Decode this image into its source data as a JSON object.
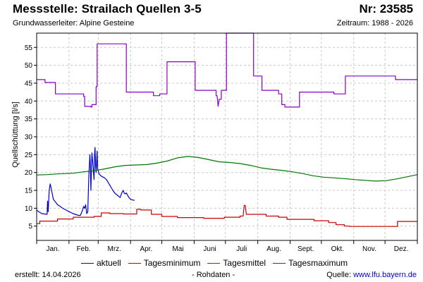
{
  "header": {
    "title": "Messstelle: Strailach Quellen 3-5",
    "station_nr": "Nr: 23585",
    "subtitle": "Grundwasserleiter: Alpine Gesteine",
    "period": "Zeitraum: 1988 - 2026"
  },
  "footer": {
    "created_label": "erstellt:",
    "created_date": "14.04.2026",
    "raw_data_note": "- Rohdaten -",
    "source_label": "Quelle:",
    "source_link": "www.lfu.bayern.de"
  },
  "colors": {
    "aktuell": "#0000cc",
    "min": "#cc0000",
    "mean": "#007700",
    "max": "#8800cc",
    "grid": "#c8c8c8",
    "axis": "#000000"
  },
  "chart_data": {
    "type": "line",
    "ylabel": "Quellschüttung [l/s]",
    "xlabel": "",
    "ylim": [
      1,
      59
    ],
    "yticks": [
      5,
      10,
      15,
      20,
      25,
      30,
      35,
      40,
      45,
      50,
      55
    ],
    "xlim": [
      0,
      365
    ],
    "months": [
      "Jan.",
      "Feb.",
      "Mrz.",
      "Apr.",
      "Mai",
      "Juni",
      "Juli",
      "Aug.",
      "Sept.",
      "Okt.",
      "Nov.",
      "Dez."
    ],
    "grid": true,
    "legend_position": "bottom",
    "series": [
      {
        "name": "aktuell",
        "color": "#0000cc",
        "points": [
          [
            0,
            9.5
          ],
          [
            2,
            9.0
          ],
          [
            5,
            8.5
          ],
          [
            10,
            8.3
          ],
          [
            10.5,
            12
          ],
          [
            11,
            9
          ],
          [
            12,
            15
          ],
          [
            13,
            16.8
          ],
          [
            14,
            15.5
          ],
          [
            15,
            14
          ],
          [
            16,
            12.5
          ],
          [
            20,
            11
          ],
          [
            25,
            10
          ],
          [
            30,
            9.2
          ],
          [
            35,
            8.5
          ],
          [
            38,
            8.2
          ],
          [
            40,
            8.0
          ],
          [
            42,
            8.0
          ],
          [
            44,
            9.5
          ],
          [
            45,
            10.5
          ],
          [
            46,
            10
          ],
          [
            47,
            11
          ],
          [
            48,
            8.5
          ],
          [
            49,
            9
          ],
          [
            50,
            19
          ],
          [
            51,
            25
          ],
          [
            51.5,
            22
          ],
          [
            52,
            15
          ],
          [
            53,
            25.5
          ],
          [
            54,
            22
          ],
          [
            55,
            18
          ],
          [
            55.5,
            25
          ],
          [
            56,
            27
          ],
          [
            56.5,
            22
          ],
          [
            57,
            20
          ],
          [
            58,
            26
          ],
          [
            58.5,
            21
          ],
          [
            60,
            19.5
          ],
          [
            62,
            19
          ],
          [
            65,
            18.5
          ],
          [
            67,
            18
          ],
          [
            70,
            16.5
          ],
          [
            73,
            15
          ],
          [
            75,
            14.2
          ],
          [
            78,
            13.5
          ],
          [
            80,
            13
          ],
          [
            81,
            13.8
          ],
          [
            82,
            14.5
          ],
          [
            83,
            15
          ],
          [
            84,
            14.2
          ],
          [
            85,
            14
          ],
          [
            86,
            14.3
          ],
          [
            88,
            13.2
          ],
          [
            90,
            12.5
          ],
          [
            92,
            12.3
          ],
          [
            94,
            12.2
          ]
        ]
      },
      {
        "name": "Tagesminimum",
        "color": "#cc0000",
        "points": [
          [
            0,
            5.7
          ],
          [
            3,
            5.7
          ],
          [
            3,
            6.4
          ],
          [
            20,
            6.4
          ],
          [
            20,
            7.0
          ],
          [
            35,
            7.0
          ],
          [
            35,
            7.5
          ],
          [
            55,
            7.5
          ],
          [
            55,
            7.7
          ],
          [
            62,
            7.7
          ],
          [
            62,
            8.7
          ],
          [
            70,
            8.7
          ],
          [
            70,
            8.5
          ],
          [
            83,
            8.5
          ],
          [
            83,
            8.4
          ],
          [
            96,
            8.4
          ],
          [
            96,
            9.7
          ],
          [
            100,
            9.7
          ],
          [
            100,
            9.5
          ],
          [
            110,
            9.5
          ],
          [
            110,
            8.3
          ],
          [
            120,
            8.3
          ],
          [
            120,
            7.7
          ],
          [
            135,
            7.7
          ],
          [
            135,
            7.4
          ],
          [
            160,
            7.4
          ],
          [
            160,
            7.2
          ],
          [
            180,
            7.2
          ],
          [
            180,
            7.5
          ],
          [
            195,
            7.5
          ],
          [
            195,
            7.8
          ],
          [
            198,
            7.8
          ],
          [
            199,
            10.8
          ],
          [
            200,
            10.8
          ],
          [
            201,
            8.3
          ],
          [
            220,
            8.3
          ],
          [
            220,
            7.8
          ],
          [
            232,
            7.8
          ],
          [
            232,
            7.5
          ],
          [
            240,
            7.5
          ],
          [
            240,
            6.9
          ],
          [
            266,
            6.9
          ],
          [
            266,
            6.5
          ],
          [
            280,
            6.5
          ],
          [
            280,
            6.0
          ],
          [
            287,
            6.0
          ],
          [
            287,
            5.4
          ],
          [
            295,
            5.4
          ],
          [
            295,
            5.0
          ],
          [
            300,
            5.0
          ],
          [
            300,
            4.9
          ],
          [
            346,
            4.9
          ],
          [
            346,
            6.3
          ],
          [
            365,
            6.3
          ]
        ]
      },
      {
        "name": "Tagesmittel",
        "color": "#007700",
        "points": [
          [
            0,
            19.3
          ],
          [
            10,
            19.4
          ],
          [
            20,
            19.6
          ],
          [
            35,
            19.8
          ],
          [
            45,
            20.2
          ],
          [
            55,
            20.5
          ],
          [
            65,
            21.0
          ],
          [
            75,
            21.6
          ],
          [
            85,
            22.0
          ],
          [
            95,
            22.1
          ],
          [
            105,
            22.2
          ],
          [
            115,
            22.6
          ],
          [
            125,
            23.2
          ],
          [
            135,
            24.1
          ],
          [
            145,
            24.5
          ],
          [
            155,
            24.2
          ],
          [
            165,
            23.6
          ],
          [
            175,
            23.0
          ],
          [
            185,
            22.8
          ],
          [
            195,
            22.5
          ],
          [
            205,
            22.0
          ],
          [
            215,
            21.3
          ],
          [
            225,
            20.9
          ],
          [
            235,
            20.6
          ],
          [
            245,
            20.2
          ],
          [
            255,
            19.7
          ],
          [
            265,
            19.1
          ],
          [
            275,
            18.7
          ],
          [
            285,
            18.5
          ],
          [
            295,
            18.3
          ],
          [
            305,
            18.0
          ],
          [
            315,
            17.8
          ],
          [
            325,
            17.6
          ],
          [
            335,
            17.7
          ],
          [
            345,
            18.2
          ],
          [
            355,
            18.8
          ],
          [
            365,
            19.4
          ]
        ]
      },
      {
        "name": "Tagesmaximum",
        "color": "#8800cc",
        "points": [
          [
            0,
            46
          ],
          [
            8,
            46
          ],
          [
            8,
            45.2
          ],
          [
            18,
            45.2
          ],
          [
            18,
            42
          ],
          [
            45,
            42
          ],
          [
            45,
            41.3
          ],
          [
            46,
            41.3
          ],
          [
            46,
            38.5
          ],
          [
            52,
            38.5
          ],
          [
            52,
            38.3
          ],
          [
            53,
            38.3
          ],
          [
            53,
            39
          ],
          [
            57,
            39
          ],
          [
            57,
            44
          ],
          [
            58,
            44
          ],
          [
            58,
            56
          ],
          [
            86,
            56
          ],
          [
            86,
            42.5
          ],
          [
            112,
            42.5
          ],
          [
            112,
            41.5
          ],
          [
            118,
            41.5
          ],
          [
            118,
            42
          ],
          [
            125,
            42
          ],
          [
            125,
            51
          ],
          [
            152,
            51
          ],
          [
            152,
            43
          ],
          [
            172,
            43
          ],
          [
            172,
            41.5
          ],
          [
            173,
            41.5
          ],
          [
            174,
            38.5
          ],
          [
            175,
            40.5
          ],
          [
            177,
            40.5
          ],
          [
            177,
            43
          ],
          [
            182,
            43
          ],
          [
            182,
            59
          ],
          [
            208,
            59
          ],
          [
            208,
            47
          ],
          [
            216,
            47
          ],
          [
            216,
            43
          ],
          [
            232,
            43
          ],
          [
            232,
            42
          ],
          [
            235,
            42
          ],
          [
            235,
            39
          ],
          [
            238,
            39
          ],
          [
            238,
            38.3
          ],
          [
            252,
            38.3
          ],
          [
            252,
            42.5
          ],
          [
            285,
            42.5
          ],
          [
            285,
            42
          ],
          [
            296,
            42
          ],
          [
            296,
            47
          ],
          [
            326,
            47
          ],
          [
            326,
            47
          ],
          [
            344,
            47
          ],
          [
            344,
            46
          ],
          [
            365,
            46
          ]
        ]
      }
    ]
  }
}
